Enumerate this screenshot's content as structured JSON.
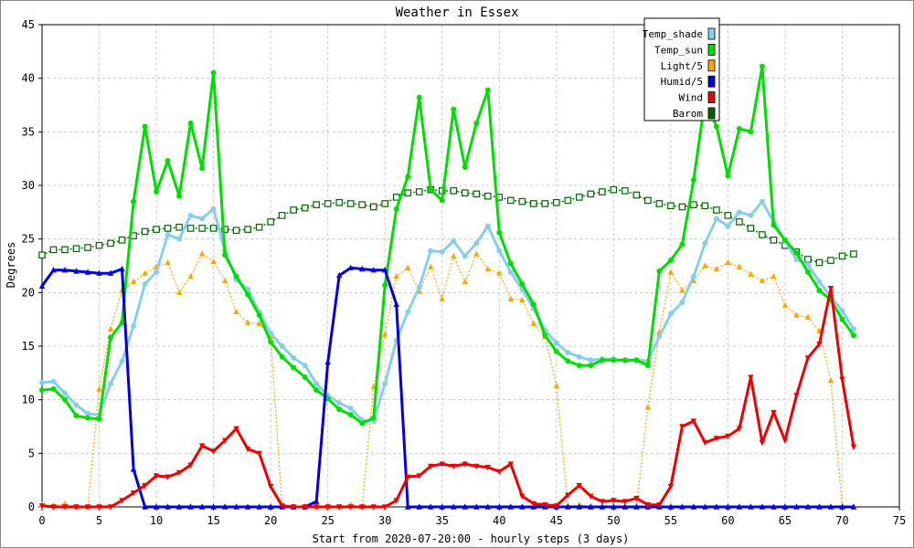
{
  "chart_data": {
    "type": "line",
    "title": "Weather in Essex",
    "xlabel": "Start from 2020-07-20:00 - hourly steps (3 days)",
    "ylabel": "Degrees",
    "xlim": [
      0,
      75
    ],
    "ylim": [
      0,
      45
    ],
    "xticks": [
      0,
      5,
      10,
      15,
      20,
      25,
      30,
      35,
      40,
      45,
      50,
      55,
      60,
      65,
      70,
      75
    ],
    "yticks": [
      0,
      5,
      10,
      15,
      20,
      25,
      30,
      35,
      40,
      45
    ],
    "grid": true,
    "legend_position": "top-right",
    "series": [
      {
        "name": "Temp_shade",
        "color": "#87ceeb",
        "marker": "circle",
        "values": [
          11.6,
          11.7,
          10.6,
          9.5,
          8.7,
          8.6,
          11.5,
          13.6,
          16.9,
          20.8,
          21.9,
          25.4,
          25.0,
          27.2,
          26.9,
          27.8,
          23.9,
          21.2,
          20.3,
          18.2,
          16.2,
          15.0,
          13.9,
          13.2,
          11.5,
          10.4,
          9.7,
          9.2,
          8.1,
          8.0,
          11.5,
          15.5,
          18.2,
          20.5,
          23.9,
          23.8,
          24.8,
          23.4,
          24.6,
          26.2,
          23.9,
          21.9,
          20.3,
          18.5,
          16.5,
          15.3,
          14.4,
          14.0,
          13.7,
          13.8,
          13.8,
          13.6,
          13.7,
          13.6,
          15.9,
          18.0,
          19.1,
          21.5,
          24.6,
          26.9,
          26.2,
          27.5,
          27.2,
          28.5,
          26.6,
          24.8,
          23.1,
          22.6,
          21.0,
          19.6,
          18.3,
          16.6
        ]
      },
      {
        "name": "Temp_sun",
        "color": "#00dd00",
        "marker": "circle",
        "values": [
          10.9,
          11.0,
          10.0,
          8.5,
          8.3,
          8.2,
          15.8,
          17.2,
          28.5,
          35.5,
          29.4,
          32.3,
          29.0,
          35.8,
          31.6,
          40.5,
          23.5,
          21.5,
          19.8,
          17.9,
          15.4,
          14.0,
          13.0,
          12.1,
          10.9,
          10.1,
          9.1,
          8.6,
          7.8,
          8.3,
          20.7,
          27.8,
          30.8,
          38.2,
          29.6,
          28.6,
          37.1,
          31.7,
          35.8,
          38.9,
          25.6,
          22.7,
          20.8,
          18.9,
          16.0,
          14.5,
          13.6,
          13.2,
          13.2,
          13.7,
          13.7,
          13.7,
          13.7,
          13.2,
          22.0,
          23.0,
          24.5,
          30.5,
          38.0,
          35.5,
          30.9,
          35.3,
          35.0,
          41.1,
          26.3,
          24.9,
          23.7,
          21.9,
          20.2,
          19.3,
          17.5,
          16.0
        ]
      },
      {
        "name": "Light/5",
        "color": "#ffa500",
        "marker": "triangle",
        "values": [
          0.2,
          0.1,
          0.3,
          0.0,
          0.0,
          11.0,
          16.6,
          20.2,
          21.0,
          21.8,
          22.4,
          22.8,
          20.0,
          21.5,
          23.6,
          22.9,
          21.1,
          18.2,
          17.2,
          17.1,
          15.9,
          0.0,
          0.0,
          0.0,
          0.0,
          0.0,
          0.0,
          0.2,
          0.0,
          11.2,
          16.1,
          21.5,
          22.3,
          20.1,
          22.4,
          19.4,
          23.4,
          21.0,
          23.6,
          22.2,
          21.8,
          19.4,
          19.3,
          17.1,
          15.9,
          11.3,
          0.1,
          0.2,
          0.0,
          0.0,
          0.0,
          0.0,
          0.0,
          9.3,
          16.3,
          21.9,
          20.2,
          21.1,
          22.5,
          22.2,
          22.8,
          22.4,
          21.7,
          21.1,
          21.5,
          18.8,
          17.9,
          17.7,
          16.4,
          11.8,
          0.0,
          0.0
        ]
      },
      {
        "name": "Humid/5",
        "color": "#0000dd",
        "marker": "triangle",
        "values": [
          20.6,
          22.1,
          22.1,
          22.0,
          21.9,
          21.8,
          21.8,
          22.2,
          3.5,
          0.0,
          0.0,
          0.0,
          0.0,
          0.0,
          0.0,
          0.0,
          0.0,
          0.0,
          0.0,
          0.0,
          0.0,
          0.0,
          0.0,
          0.0,
          0.5,
          13.5,
          21.6,
          22.3,
          22.2,
          22.1,
          22.1,
          18.9,
          0.0,
          0.0,
          0.0,
          0.0,
          0.0,
          0.0,
          0.0,
          0.0,
          0.0,
          0.0,
          0.0,
          0.0,
          0.0,
          0.0,
          0.0,
          0.0,
          0.0,
          0.0,
          0.0,
          0.0,
          0.0,
          0.0,
          0.0,
          0.0,
          0.0,
          0.0,
          0.0,
          0.0,
          0.0,
          0.0,
          0.0,
          0.0,
          0.0,
          0.0,
          0.0,
          0.0,
          0.0,
          0.0,
          0.0,
          0.0
        ]
      },
      {
        "name": "Wind",
        "color": "#ee0000",
        "marker": "triangle-down",
        "values": [
          0.1,
          0.0,
          0.0,
          0.0,
          0.0,
          0.0,
          0.0,
          0.6,
          1.3,
          2.0,
          2.9,
          2.8,
          3.2,
          3.9,
          5.7,
          5.2,
          6.2,
          7.3,
          5.4,
          5.0,
          1.9,
          0.1,
          0.0,
          0.0,
          0.0,
          0.0,
          0.0,
          0.0,
          0.0,
          0.0,
          0.0,
          0.6,
          2.8,
          2.9,
          3.8,
          4.0,
          3.8,
          4.0,
          3.8,
          3.7,
          3.3,
          4.0,
          1.0,
          0.3,
          0.2,
          0.1,
          1.1,
          2.0,
          1.0,
          0.5,
          0.6,
          0.5,
          0.8,
          0.2,
          0.2,
          1.9,
          7.5,
          8.0,
          6.0,
          6.4,
          6.6,
          7.3,
          12.1,
          6.0,
          8.8,
          6.2,
          10.4,
          13.9,
          15.2,
          20.4,
          11.9,
          5.6
        ]
      },
      {
        "name": "Barom",
        "color": "#006400",
        "marker": "square",
        "values": [
          23.5,
          24.0,
          24.0,
          24.1,
          24.2,
          24.4,
          24.6,
          24.9,
          25.3,
          25.7,
          25.9,
          26.0,
          26.1,
          26.0,
          26.0,
          26.0,
          25.9,
          25.8,
          25.9,
          26.1,
          26.6,
          27.2,
          27.7,
          27.9,
          28.2,
          28.3,
          28.4,
          28.3,
          28.2,
          28.0,
          28.3,
          28.9,
          29.3,
          29.4,
          29.6,
          29.5,
          29.5,
          29.3,
          29.2,
          29.0,
          28.9,
          28.6,
          28.5,
          28.3,
          28.3,
          28.4,
          28.6,
          28.9,
          29.2,
          29.4,
          29.6,
          29.5,
          29.1,
          28.6,
          28.3,
          28.1,
          28.0,
          28.2,
          28.1,
          27.7,
          27.2,
          26.6,
          26.0,
          25.4,
          24.9,
          24.4,
          23.8,
          23.1,
          22.8,
          23.0,
          23.4,
          23.6
        ]
      }
    ]
  }
}
